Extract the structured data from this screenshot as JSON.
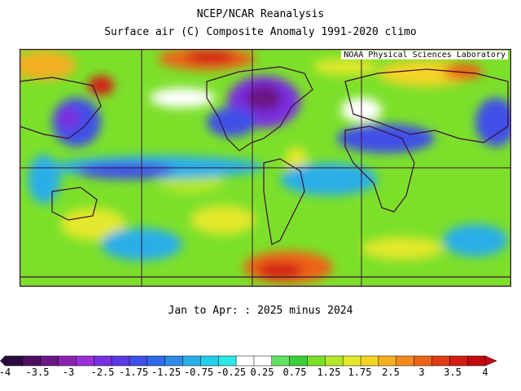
{
  "title": "NCEP/NCAR Reanalysis",
  "subtitle": "Surface air (C) Composite Anomaly 1991-2020 climo",
  "credit": "NOAA Physical Sciences Laboratory",
  "period_label": "Jan to Apr: : 2025 minus 2024",
  "colorbar": {
    "min": -4,
    "max": 4,
    "tick_labels": [
      "-4",
      "-3.5",
      "-3",
      "-2.5",
      "-1.75",
      "-1.25",
      "-0.75",
      "-0.25",
      "0.25",
      "0.75",
      "1.25",
      "1.75",
      "2.5",
      "3",
      "3.5",
      "4"
    ],
    "colors": [
      "#2a0a3e",
      "#4b0f5e",
      "#6a1684",
      "#8a22b0",
      "#9b30d8",
      "#7a2fe0",
      "#5a3ae6",
      "#3f4fe8",
      "#2f6ae8",
      "#2e8ce6",
      "#2aaee8",
      "#22cfe8",
      "#2fe6e8",
      "#ffffff",
      "#ffffff",
      "#5fe25f",
      "#3ad03a",
      "#7ce02a",
      "#b2e82a",
      "#e3e82a",
      "#f4d426",
      "#f4b020",
      "#f48a1c",
      "#ec6418",
      "#e03c14",
      "#d21e12",
      "#c20a10"
    ]
  },
  "map_colors": {
    "neutral": "#ffffff",
    "warm_mild": "#7ce02a",
    "warm": "#e3e82a",
    "hot": "#ec6418",
    "very_hot": "#d21e12",
    "cool_mild": "#2aaee8",
    "cool": "#3f4fe8",
    "cold": "#7a2fe0",
    "land_outline": "#3a0d3a"
  }
}
